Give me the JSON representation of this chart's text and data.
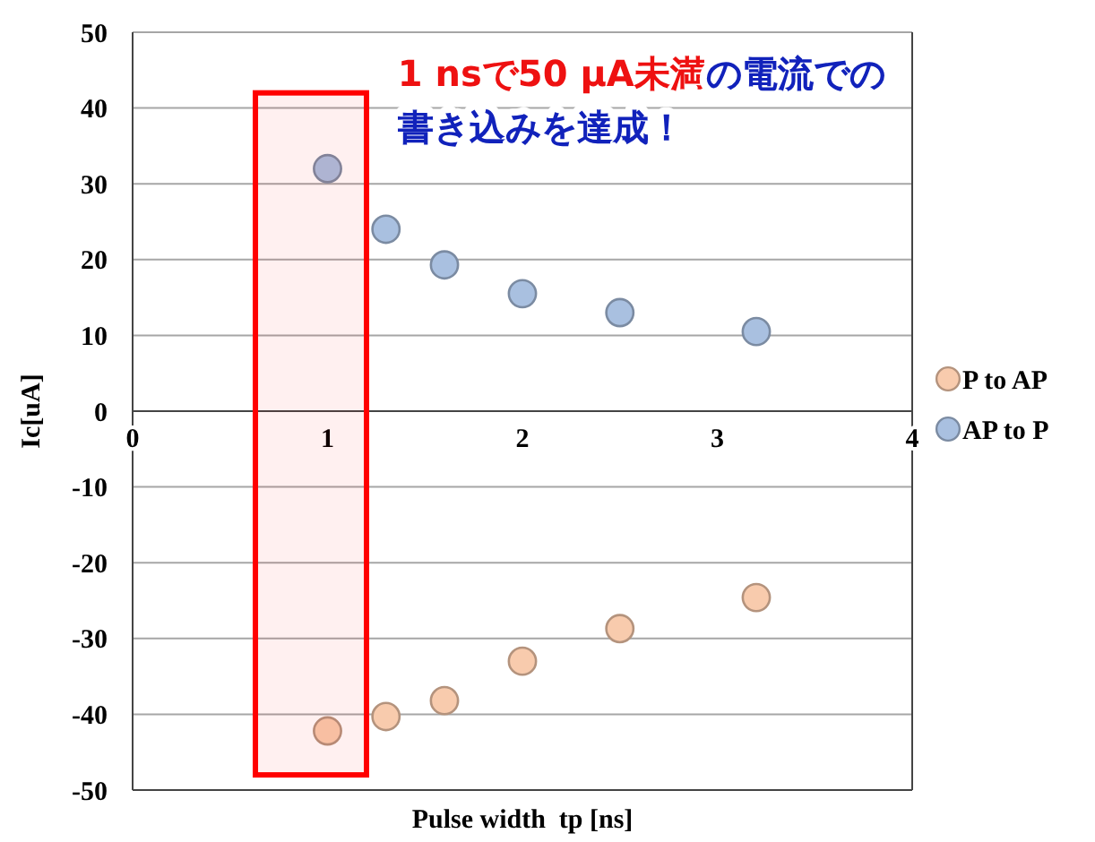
{
  "chart_data": {
    "type": "scatter",
    "xlabel": "Pulse width  tp [ns]",
    "ylabel": "Ic[uA]",
    "annotations": [
      "1 nsで50 μA未満",
      "の電流での書き込みを達成！"
    ],
    "xlim": [
      0,
      4
    ],
    "xticks": [
      0,
      1,
      2,
      3,
      4
    ],
    "ylim": [
      -50,
      50
    ],
    "yticks": [
      -50,
      -40,
      -30,
      -20,
      -10,
      0,
      10,
      20,
      30,
      40,
      50
    ],
    "grid": "y",
    "legend": "right",
    "marker": "circle",
    "bands": [
      {
        "axis": "x",
        "from": 0.63,
        "to": 1.2,
        "color": "#ff0000"
      }
    ],
    "series": [
      {
        "name": "P to AP",
        "color": "#f8cbad",
        "x": [
          1.0,
          1.3,
          1.6,
          2.0,
          2.5,
          3.2
        ],
        "values": [
          -42.2,
          -40.3,
          -38.2,
          -33,
          -28.7,
          -24.6
        ]
      },
      {
        "name": "AP to P",
        "color": "#a9c0e0",
        "x": [
          1.0,
          1.3,
          1.6,
          2.0,
          2.5,
          3.2
        ],
        "values": [
          32,
          24,
          19.3,
          15.5,
          13,
          10.5
        ]
      }
    ]
  }
}
